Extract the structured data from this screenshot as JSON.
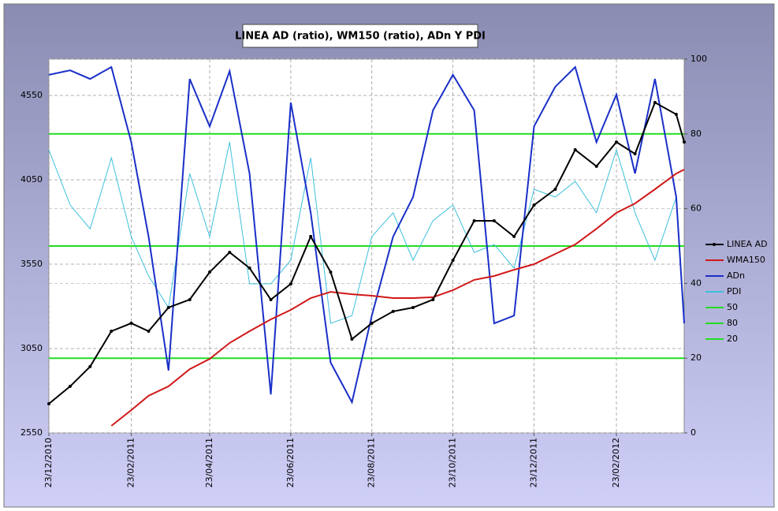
{
  "chart_data": {
    "type": "line",
    "title": "LINEA AD (ratio), WM150 (ratio), ADn Y PDI",
    "x": [
      "23/12/2010",
      "08/01/2011",
      "23/01/2011",
      "08/02/2011",
      "23/02/2011",
      "08/03/2011",
      "23/03/2011",
      "08/04/2011",
      "23/04/2011",
      "08/05/2011",
      "23/05/2011",
      "08/06/2011",
      "23/06/2011",
      "08/07/2011",
      "23/07/2011",
      "08/08/2011",
      "23/08/2011",
      "08/09/2011",
      "23/09/2011",
      "08/10/2011",
      "23/10/2011",
      "08/11/2011",
      "23/11/2011",
      "08/12/2011",
      "23/12/2011",
      "08/01/2012",
      "23/01/2012",
      "08/02/2012",
      "23/02/2012",
      "08/03/2012",
      "23/03/2012",
      "08/04/2012",
      "14/04/2012"
    ],
    "xlim": [
      "23/12/2010",
      "14/04/2012"
    ],
    "xticks": [
      "23/12/2010",
      "23/02/2011",
      "23/04/2011",
      "23/06/2011",
      "23/08/2011",
      "23/10/2011",
      "23/12/2011",
      "23/02/2012"
    ],
    "ylim": [
      2550,
      4765
    ],
    "yticks": [
      2550,
      3050,
      3550,
      4050,
      4550
    ],
    "y2lim": [
      0,
      100
    ],
    "y2ticks": [
      0,
      20,
      40,
      60,
      80,
      100
    ],
    "grid": true,
    "legend": "right",
    "series": [
      {
        "name": "LINEA AD",
        "color": "#000000",
        "marker": "circle",
        "values": [
          2723,
          2826,
          2943,
          3153,
          3200,
          3153,
          3293,
          3340,
          3503,
          3620,
          3527,
          3340,
          3433,
          3714,
          3503,
          3106,
          3200,
          3270,
          3293,
          3340,
          3573,
          3807,
          3807,
          3714,
          3900,
          3994,
          4228,
          4130,
          4274,
          4204,
          4508,
          4438,
          4274
        ]
      },
      {
        "name": "WMA150",
        "color": "#d01818",
        "values": [
          null,
          null,
          null,
          2592,
          2685,
          2770,
          2826,
          2928,
          2989,
          3083,
          3153,
          3223,
          3279,
          3349,
          3386,
          3372,
          3363,
          3349,
          3349,
          3354,
          3396,
          3457,
          3480,
          3517,
          3550,
          3611,
          3667,
          3760,
          3854,
          3910,
          3994,
          4087,
          4111
        ]
      },
      {
        "name": "ADn",
        "color": "#1a2fc8",
        "axis": "y2",
        "values": [
          95.8,
          97,
          94.7,
          97.9,
          77.8,
          52.5,
          16.7,
          94.7,
          82,
          96.8,
          69.4,
          10.3,
          88.4,
          58.9,
          18.8,
          8.2,
          31.4,
          52.5,
          63.1,
          86.3,
          95.8,
          86.3,
          29.3,
          31.4,
          82,
          92.6,
          97.9,
          77.8,
          90.5,
          69.4,
          94.7,
          63.1,
          29.3
        ]
      },
      {
        "name": "PDI",
        "color": "#3cc0dc",
        "axis": "y2",
        "values": [
          75.7,
          61,
          54.6,
          73.6,
          52.5,
          42,
          33.5,
          69.4,
          52.5,
          77.8,
          39.9,
          39.9,
          46.2,
          73.6,
          29.3,
          31.4,
          52.5,
          58.9,
          46.2,
          56.8,
          61,
          48.3,
          50.4,
          44.1,
          65.2,
          63.1,
          67.3,
          58.9,
          75.7,
          58.9,
          46.2,
          63.1,
          31.4
        ]
      },
      {
        "name": "50",
        "color": "#22dd22",
        "axis": "y2",
        "values": [
          50,
          50,
          50,
          50,
          50,
          50,
          50,
          50,
          50,
          50,
          50,
          50,
          50,
          50,
          50,
          50,
          50,
          50,
          50,
          50,
          50,
          50,
          50,
          50,
          50,
          50,
          50,
          50,
          50,
          50,
          50,
          50,
          50
        ]
      },
      {
        "name": "80",
        "color": "#22dd22",
        "axis": "y2",
        "values": [
          80,
          80,
          80,
          80,
          80,
          80,
          80,
          80,
          80,
          80,
          80,
          80,
          80,
          80,
          80,
          80,
          80,
          80,
          80,
          80,
          80,
          80,
          80,
          80,
          80,
          80,
          80,
          80,
          80,
          80,
          80,
          80,
          80
        ]
      },
      {
        "name": "20",
        "color": "#22dd22",
        "axis": "y2",
        "values": [
          20,
          20,
          20,
          20,
          20,
          20,
          20,
          20,
          20,
          20,
          20,
          20,
          20,
          20,
          20,
          20,
          20,
          20,
          20,
          20,
          20,
          20,
          20,
          20,
          20,
          20,
          20,
          20,
          20,
          20,
          20,
          20,
          20
        ]
      }
    ]
  }
}
